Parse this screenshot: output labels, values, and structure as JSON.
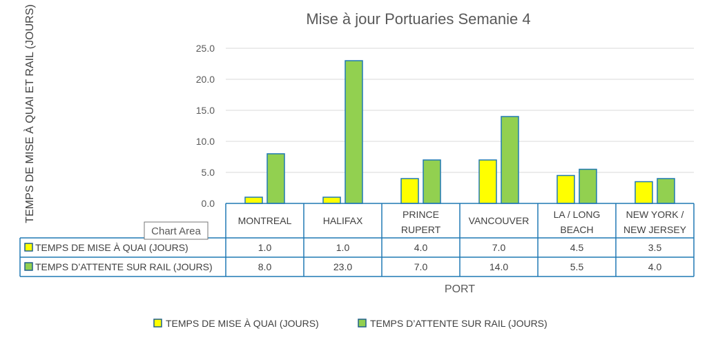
{
  "chart_data": {
    "type": "bar",
    "title": "Mise à jour Portuaries Semanie 4",
    "xlabel": "PORT",
    "ylabel": "TEMPS DE MISE À QUAI ET RAIL (JOURS)",
    "ylim": [
      0,
      25
    ],
    "yticks": [
      "0.0",
      "5.0",
      "10.0",
      "15.0",
      "20.0",
      "25.0"
    ],
    "grid": true,
    "legend_position": "bottom",
    "categories": [
      [
        "MONTREAL"
      ],
      [
        "HALIFAX"
      ],
      [
        "PRINCE",
        "RUPERT"
      ],
      [
        "VANCOUVER"
      ],
      [
        "LA / LONG",
        "BEACH"
      ],
      [
        "NEW YORK /",
        "NEW JERSEY"
      ]
    ],
    "series": [
      {
        "name": "TEMPS DE MISE À QUAI (JOURS)",
        "color": "#ffff00",
        "values": [
          1.0,
          1.0,
          4.0,
          7.0,
          4.5,
          3.5
        ],
        "labels": [
          "1.0",
          "1.0",
          "4.0",
          "7.0",
          "4.5",
          "3.5"
        ]
      },
      {
        "name": "TEMPS  D’ATTENTE SUR RAIL (JOURS)",
        "color": "#92d050",
        "values": [
          8.0,
          23.0,
          7.0,
          14.0,
          5.5,
          4.0
        ],
        "labels": [
          "8.0",
          "23.0",
          "7.0",
          "14.0",
          "5.5",
          "4.0"
        ]
      }
    ],
    "bar_border_color": "#1f78b4"
  },
  "tooltip": {
    "text": "Chart Area"
  }
}
